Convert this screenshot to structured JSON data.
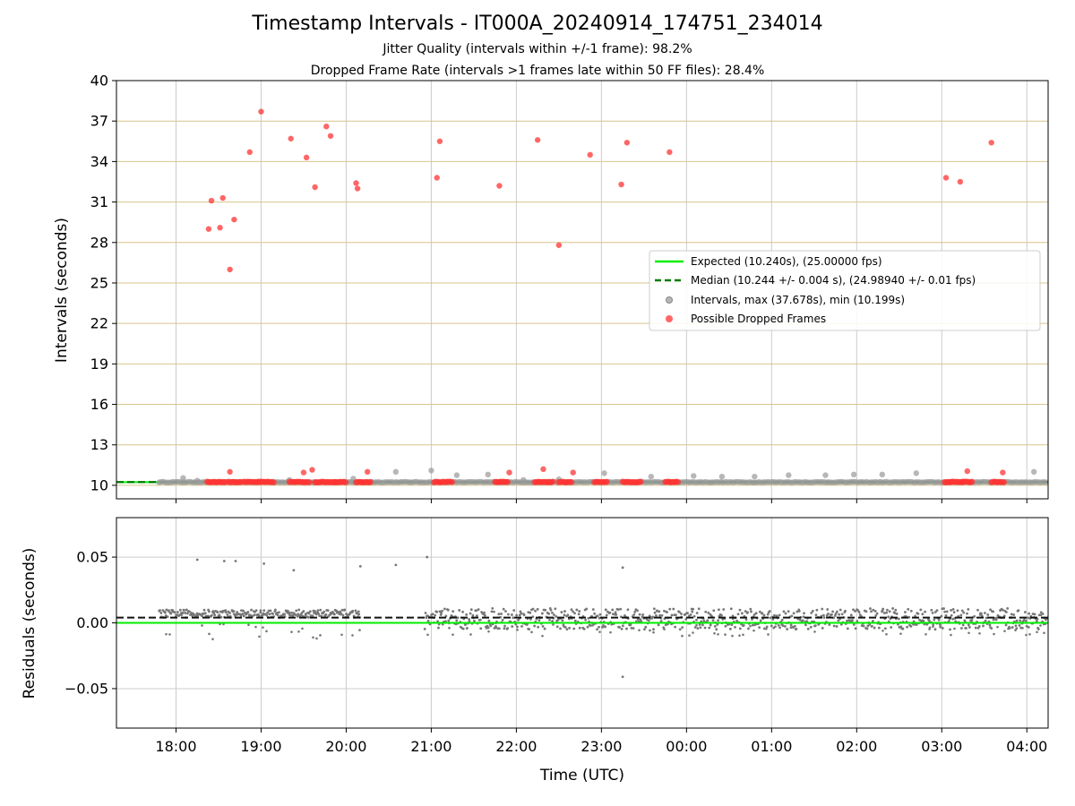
{
  "figure": {
    "title": "Timestamp Intervals - IT000A_20240914_174751_234014",
    "subtitle_1": "Jitter Quality (intervals within +/-1 frame): 98.2%",
    "subtitle_2": "Dropped Frame Rate (intervals >1 frames late within 50 FF files): 28.4%"
  },
  "colors": {
    "expected": "#00ee00",
    "median": "#007a00",
    "intervals": "#999999",
    "dropped": "#ff3333",
    "residual": "#777777",
    "hgrid_top": "#d8c48c",
    "grid": "#cccccc"
  },
  "chart_data": [
    {
      "type": "scatter",
      "panel": "top",
      "xlabel": "",
      "ylabel": "Intervals (seconds)",
      "xlim": [
        "17:18",
        "04:15"
      ],
      "ylim": [
        9,
        40
      ],
      "yticks": [
        10,
        13,
        16,
        19,
        22,
        25,
        28,
        31,
        34,
        37,
        40
      ],
      "x_ticks": [
        "18:00",
        "19:00",
        "20:00",
        "21:00",
        "22:00",
        "23:00",
        "00:00",
        "01:00",
        "02:00",
        "03:00",
        "04:00"
      ],
      "grid": true,
      "legend_position": "center-right",
      "lines": [
        {
          "name": "Expected (10.240s), (25.00000 fps)",
          "y": 10.24,
          "style": "solid"
        },
        {
          "name": "Median (10.244 +/- 0.004 s), (24.98940 +/- 0.01 fps)",
          "y": 10.244,
          "style": "dashed"
        }
      ],
      "series": [
        {
          "name": "Intervals, max (37.678s), min (10.199s)",
          "band": {
            "x_start": "17:48",
            "x_end": "04:14",
            "y": 10.24
          },
          "points": [
            {
              "x": "18:05",
              "y": 10.55
            },
            {
              "x": "18:15",
              "y": 10.35
            },
            {
              "x": "19:20",
              "y": 10.4
            },
            {
              "x": "20:05",
              "y": 10.5
            },
            {
              "x": "20:35",
              "y": 11.0
            },
            {
              "x": "21:00",
              "y": 11.1
            },
            {
              "x": "21:18",
              "y": 10.75
            },
            {
              "x": "21:40",
              "y": 10.8
            },
            {
              "x": "22:05",
              "y": 10.4
            },
            {
              "x": "22:30",
              "y": 10.45
            },
            {
              "x": "23:02",
              "y": 10.9
            },
            {
              "x": "23:35",
              "y": 10.65
            },
            {
              "x": "00:05",
              "y": 10.7
            },
            {
              "x": "00:25",
              "y": 10.65
            },
            {
              "x": "00:48",
              "y": 10.65
            },
            {
              "x": "01:12",
              "y": 10.75
            },
            {
              "x": "01:38",
              "y": 10.75
            },
            {
              "x": "01:58",
              "y": 10.8
            },
            {
              "x": "02:18",
              "y": 10.8
            },
            {
              "x": "02:42",
              "y": 10.9
            },
            {
              "x": "04:05",
              "y": 11.0
            }
          ]
        },
        {
          "name": "Possible Dropped Frames",
          "clusters": [
            {
              "x_start": "18:22",
              "x_end": "18:35"
            },
            {
              "x_start": "18:37",
              "x_end": "18:46"
            },
            {
              "x_start": "18:48",
              "x_end": "19:00"
            },
            {
              "x_start": "19:00",
              "x_end": "19:10"
            },
            {
              "x_start": "19:20",
              "x_end": "19:35"
            },
            {
              "x_start": "19:38",
              "x_end": "19:52"
            },
            {
              "x_start": "19:52",
              "x_end": "20:00"
            },
            {
              "x_start": "20:07",
              "x_end": "20:18"
            },
            {
              "x_start": "21:02",
              "x_end": "21:15"
            },
            {
              "x_start": "21:45",
              "x_end": "21:55"
            },
            {
              "x_start": "22:13",
              "x_end": "22:26"
            },
            {
              "x_start": "22:30",
              "x_end": "22:40"
            },
            {
              "x_start": "22:55",
              "x_end": "23:05"
            },
            {
              "x_start": "23:15",
              "x_end": "23:28"
            },
            {
              "x_start": "23:45",
              "x_end": "23:55"
            },
            {
              "x_start": "03:02",
              "x_end": "03:15"
            },
            {
              "x_start": "03:15",
              "x_end": "03:22"
            },
            {
              "x_start": "03:35",
              "x_end": "03:44"
            }
          ],
          "points": [
            {
              "x": "18:23",
              "y": 29.0
            },
            {
              "x": "18:25",
              "y": 31.1
            },
            {
              "x": "18:31",
              "y": 29.1
            },
            {
              "x": "18:33",
              "y": 31.3
            },
            {
              "x": "18:38",
              "y": 26.0
            },
            {
              "x": "18:41",
              "y": 29.7
            },
            {
              "x": "18:52",
              "y": 34.7
            },
            {
              "x": "19:00",
              "y": 37.7
            },
            {
              "x": "19:21",
              "y": 35.7
            },
            {
              "x": "19:32",
              "y": 34.3
            },
            {
              "x": "19:38",
              "y": 32.1
            },
            {
              "x": "19:46",
              "y": 36.6
            },
            {
              "x": "19:49",
              "y": 35.9
            },
            {
              "x": "20:07",
              "y": 32.4
            },
            {
              "x": "20:08",
              "y": 32.0
            },
            {
              "x": "21:04",
              "y": 32.8
            },
            {
              "x": "21:06",
              "y": 35.5
            },
            {
              "x": "21:48",
              "y": 32.2
            },
            {
              "x": "22:15",
              "y": 35.6
            },
            {
              "x": "22:30",
              "y": 27.8
            },
            {
              "x": "22:52",
              "y": 34.5
            },
            {
              "x": "23:14",
              "y": 32.3
            },
            {
              "x": "23:18",
              "y": 35.4
            },
            {
              "x": "23:48",
              "y": 34.7
            },
            {
              "x": "03:03",
              "y": 32.8
            },
            {
              "x": "03:13",
              "y": 32.5
            },
            {
              "x": "03:35",
              "y": 35.4
            },
            {
              "x": "18:38",
              "y": 11.0
            },
            {
              "x": "19:30",
              "y": 10.95
            },
            {
              "x": "19:36",
              "y": 11.15
            },
            {
              "x": "20:15",
              "y": 11.0
            },
            {
              "x": "21:55",
              "y": 10.95
            },
            {
              "x": "22:19",
              "y": 11.2
            },
            {
              "x": "22:40",
              "y": 10.95
            },
            {
              "x": "03:18",
              "y": 11.05
            },
            {
              "x": "03:43",
              "y": 10.95
            }
          ]
        }
      ]
    },
    {
      "type": "scatter",
      "panel": "bottom",
      "xlabel": "Time (UTC)",
      "ylabel": "Residuals (seconds)",
      "xlim": [
        "17:18",
        "04:15"
      ],
      "ylim": [
        -0.08,
        0.08
      ],
      "yticks": [
        -0.05,
        0.0,
        0.05
      ],
      "ytick_labels": [
        "−0.05",
        "0.00",
        "0.05"
      ],
      "x_ticks": [
        "18:00",
        "19:00",
        "20:00",
        "21:00",
        "22:00",
        "23:00",
        "00:00",
        "01:00",
        "02:00",
        "03:00",
        "04:00"
      ],
      "grid": true,
      "lines": [
        {
          "name": "Expected",
          "y": 0.0,
          "style": "solid"
        },
        {
          "name": "Median",
          "y": 0.004,
          "style": "dashed"
        }
      ],
      "series": [
        {
          "name": "Residuals",
          "segments": [
            {
              "x_start": "17:48",
              "x_end": "20:10",
              "center": 0.007,
              "spread": 0.003,
              "scatter_low": -0.014
            },
            {
              "x_start": "20:55",
              "x_end": "04:14",
              "center": 0.003,
              "spread": 0.008,
              "scatter_low": -0.01
            }
          ],
          "outliers": [
            {
              "x": "18:15",
              "y": 0.048
            },
            {
              "x": "18:34",
              "y": 0.047
            },
            {
              "x": "18:42",
              "y": 0.047
            },
            {
              "x": "19:02",
              "y": 0.045
            },
            {
              "x": "19:23",
              "y": 0.04
            },
            {
              "x": "20:10",
              "y": 0.043
            },
            {
              "x": "20:35",
              "y": 0.044
            },
            {
              "x": "20:57",
              "y": 0.05
            },
            {
              "x": "23:15",
              "y": 0.042
            },
            {
              "x": "23:15",
              "y": -0.041
            }
          ]
        }
      ]
    }
  ]
}
